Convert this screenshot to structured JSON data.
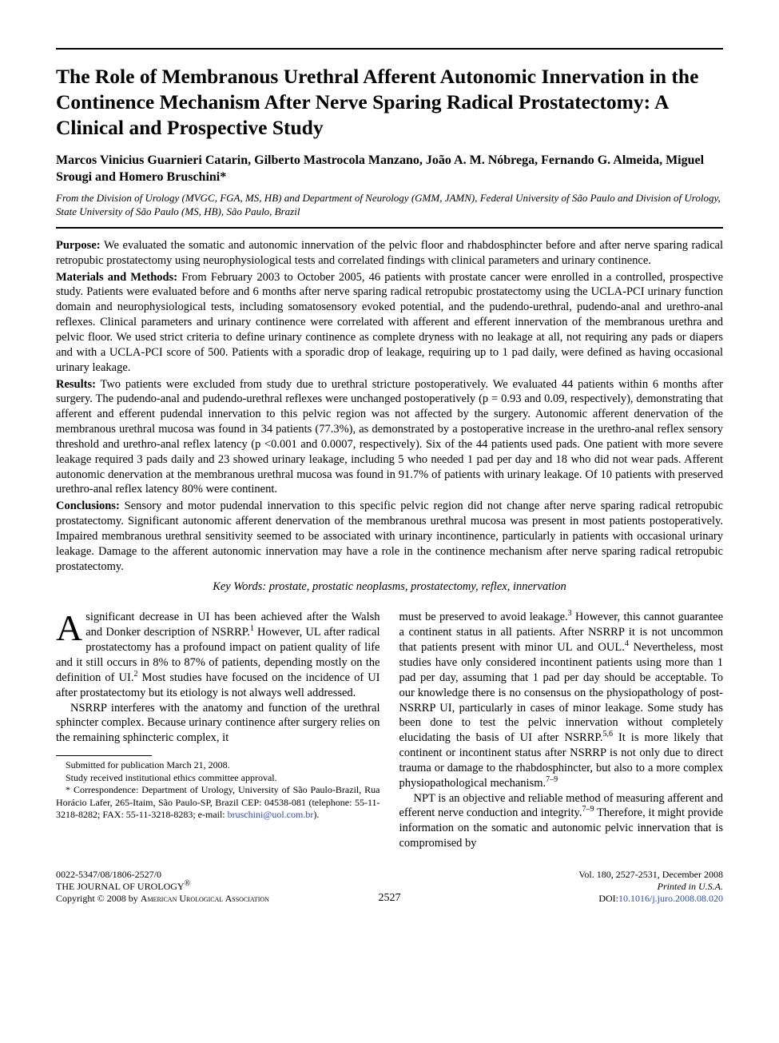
{
  "title": "The Role of Membranous Urethral Afferent Autonomic Innervation in the Continence Mechanism After Nerve Sparing Radical Prostatectomy: A Clinical and Prospective Study",
  "authors": "Marcos Vinicius Guarnieri Catarin, Gilberto Mastrocola Manzano, João A. M. Nóbrega, Fernando G. Almeida, Miguel Srougi and Homero Bruschini*",
  "affiliation": "From the Division of Urology (MVGC, FGA, MS, HB) and Department of Neurology (GMM, JAMN), Federal University of São Paulo and Division of Urology, State University of São Paulo (MS, HB), São Paulo, Brazil",
  "abstract": {
    "purpose_label": "Purpose:",
    "purpose": " We evaluated the somatic and autonomic innervation of the pelvic floor and rhabdosphincter before and after nerve sparing radical retropubic prostatectomy using neurophysiological tests and correlated findings with clinical parameters and urinary continence.",
    "materials_label": "Materials and Methods:",
    "materials": " From February 2003 to October 2005, 46 patients with prostate cancer were enrolled in a controlled, prospective study. Patients were evaluated before and 6 months after nerve sparing radical retropubic prostatectomy using the UCLA-PCI urinary function domain and neurophysiological tests, including somatosensory evoked potential, and the pudendo-urethral, pudendo-anal and urethro-anal reflexes. Clinical parameters and urinary continence were correlated with afferent and efferent innervation of the membranous urethra and pelvic floor. We used strict criteria to define urinary continence as complete dryness with no leakage at all, not requiring any pads or diapers and with a UCLA-PCI score of 500. Patients with a sporadic drop of leakage, requiring up to 1 pad daily, were defined as having occasional urinary leakage.",
    "results_label": "Results:",
    "results": " Two patients were excluded from study due to urethral stricture postoperatively. We evaluated 44 patients within 6 months after surgery. The pudendo-anal and pudendo-urethral reflexes were unchanged postoperatively (p = 0.93 and 0.09, respectively), demonstrating that afferent and efferent pudendal innervation to this pelvic region was not affected by the surgery. Autonomic afferent denervation of the membranous urethral mucosa was found in 34 patients (77.3%), as demonstrated by a postoperative increase in the urethro-anal reflex sensory threshold and urethro-anal reflex latency (p <0.001 and 0.0007, respectively). Six of the 44 patients used pads. One patient with more severe leakage required 3 pads daily and 23 showed urinary leakage, including 5 who needed 1 pad per day and 18 who did not wear pads. Afferent autonomic denervation at the membranous urethral mucosa was found in 91.7% of patients with urinary leakage. Of 10 patients with preserved urethro-anal reflex latency 80% were continent.",
    "conclusions_label": "Conclusions:",
    "conclusions": " Sensory and motor pudendal innervation to this specific pelvic region did not change after nerve sparing radical retropubic prostatectomy. Significant autonomic afferent denervation of the membranous urethral mucosa was present in most patients postoperatively. Impaired membranous urethral sensitivity seemed to be associated with urinary incontinence, particularly in patients with occasional urinary leakage. Damage to the afferent autonomic innervation may have a role in the continence mechanism after nerve sparing radical retropubic prostatectomy."
  },
  "keywords": "Key Words: prostate, prostatic neoplasms, prostatectomy, reflex, innervation",
  "body": {
    "p1a": "significant decrease in UI has been achieved after the Walsh and Donker description of NSRRP.",
    "p1b": " However, UL after radical prostatectomy has a profound impact on patient quality of life and it still occurs in 8% to 87% of patients, depending mostly on the definition of UI.",
    "p1c": " Most studies have focused on the incidence of UI after prostatectomy but its etiology is not always well addressed.",
    "p2a": "NSRRP interferes with the anatomy and function of the urethral sphincter complex. Because urinary continence after surgery relies on the remaining sphincteric complex, it must be preserved to avoid leakage.",
    "p2b": " However, this cannot guarantee a continent status in all patients. After NSRRP it is not uncommon that patients present with minor UL and OUL.",
    "p2c": " Nevertheless, most studies have only considered incontinent patients using more than 1 pad per day, assuming that 1 pad per day should be acceptable. To our knowledge there is no consensus on the physiopathology of post-NSRRP UI, particularly in cases of minor leakage. Some study has been done to test the pelvic innervation without completely elucidating the basis of UI after NSRRP.",
    "p2d": " It is more likely that continent or incontinent status after NSRRP is not only due to direct trauma or damage to the rhabdosphincter, but also to a more complex physiopathological mechanism.",
    "p3a": "NPT is an objective and reliable method of measuring afferent and efferent nerve conduction and integrity.",
    "p3b": " Therefore, it might provide information on the somatic and autonomic pelvic innervation that is compromised by"
  },
  "refs": {
    "r1": "1",
    "r2": "2",
    "r3": "3",
    "r4": "4",
    "r56": "5,6",
    "r7_9a": "7–9",
    "r7_9b": "7–9"
  },
  "footnotes": {
    "f1": "Submitted for publication March 21, 2008.",
    "f2": "Study received institutional ethics committee approval.",
    "f3a": "* Correspondence: Department of Urology, University of São Paulo-Brazil, Rua Horácio Lafer, 265-Itaim, São Paulo-SP, Brazil CEP: 04538-081 (telephone: 55-11-3218-8282; FAX: 55-11-3218-8283; e-mail: ",
    "email": "bruschini@uol.com.br",
    "f3b": ")."
  },
  "footer": {
    "left_l1": "0022-5347/08/1806-2527/0",
    "left_l2_a": "T",
    "left_l2_b": "HE ",
    "left_l2_c": "J",
    "left_l2_d": "OURNAL OF ",
    "left_l2_e": "U",
    "left_l2_f": "ROLOGY",
    "left_l2_sup": "®",
    "left_l3": "Copyright © 2008 by ",
    "left_l3_b": "American Urological Association",
    "mid": "2527",
    "right_l1": "Vol. 180, 2527-2531, December 2008",
    "right_l2": "Printed in U.S.A.",
    "right_l3a": "DOI:",
    "right_l3b": "10.1016/j.juro.2008.08.020"
  }
}
